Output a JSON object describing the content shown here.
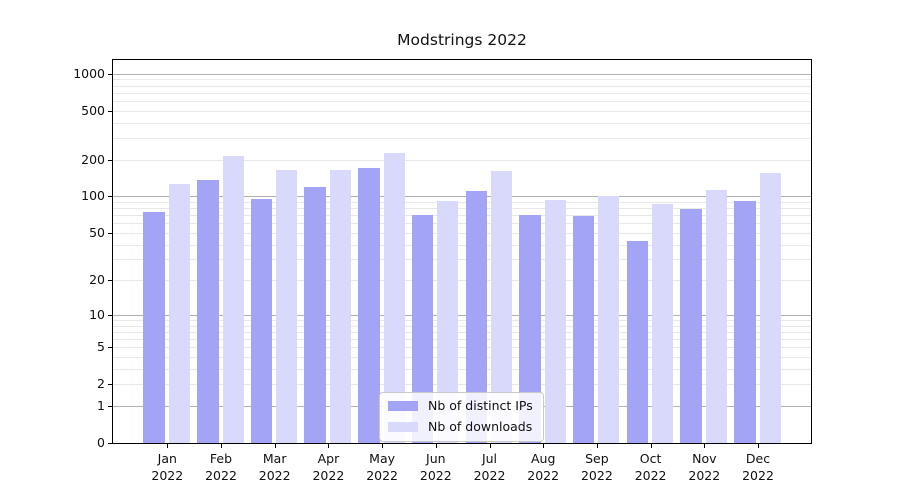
{
  "chart_data": {
    "type": "bar",
    "title": "Modstrings 2022",
    "year": "2022",
    "categories": [
      "Jan",
      "Feb",
      "Mar",
      "Apr",
      "May",
      "Jun",
      "Jul",
      "Aug",
      "Sep",
      "Oct",
      "Nov",
      "Dec"
    ],
    "series": [
      {
        "name": "Nb of distinct IPs",
        "color": "#a4a4f6",
        "values": [
          75,
          135,
          95,
          120,
          170,
          70,
          110,
          70,
          69,
          43,
          78,
          92
        ]
      },
      {
        "name": "Nb of downloads",
        "color": "#d9d9fb",
        "values": [
          125,
          215,
          165,
          165,
          225,
          91,
          160,
          93,
          100,
          87,
          112,
          155
        ]
      }
    ],
    "yscale": "log1p",
    "ylim": [
      0,
      1300
    ],
    "yticks": [
      0,
      1,
      2,
      5,
      10,
      20,
      50,
      100,
      200,
      500,
      1000
    ],
    "minor_gridlines": [
      2,
      3,
      4,
      5,
      6,
      7,
      8,
      9,
      20,
      30,
      40,
      50,
      60,
      70,
      80,
      90,
      200,
      300,
      400,
      500,
      600,
      700,
      800,
      900
    ],
    "major_gridlines": [
      1,
      10,
      100,
      1000
    ],
    "grid": true,
    "legend_position": "lower center",
    "colors": {
      "major_grid": "#b0b0b0",
      "minor_grid": "#e8e8e8",
      "axis": "#000000",
      "background": "#ffffff"
    }
  }
}
